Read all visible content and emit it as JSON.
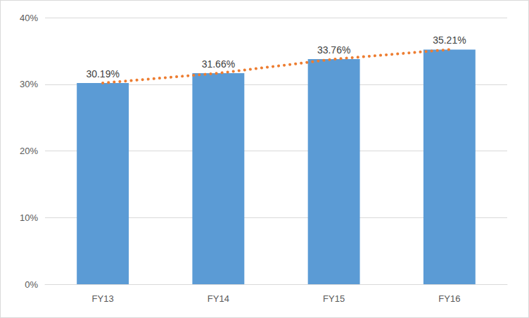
{
  "chart_data": {
    "type": "bar",
    "categories": [
      "FY13",
      "FY14",
      "FY15",
      "FY16"
    ],
    "series": [
      {
        "type": "bar",
        "color": "#5b9bd5",
        "values": [
          30.19,
          31.66,
          33.76,
          35.21
        ],
        "value_labels": [
          "30.19%",
          "31.66%",
          "33.76%",
          "35.21%"
        ],
        "data_labels": true
      },
      {
        "type": "line",
        "color": "#ed7d31",
        "line_style": "dotted",
        "values": [
          30.19,
          31.66,
          33.76,
          35.21
        ]
      }
    ],
    "ylim": [
      0,
      40
    ],
    "yticks": [
      {
        "value": 0,
        "label": "0%"
      },
      {
        "value": 10,
        "label": "10%"
      },
      {
        "value": 20,
        "label": "20%"
      },
      {
        "value": 30,
        "label": "30%"
      },
      {
        "value": 40,
        "label": "40%"
      }
    ],
    "grid": true
  }
}
